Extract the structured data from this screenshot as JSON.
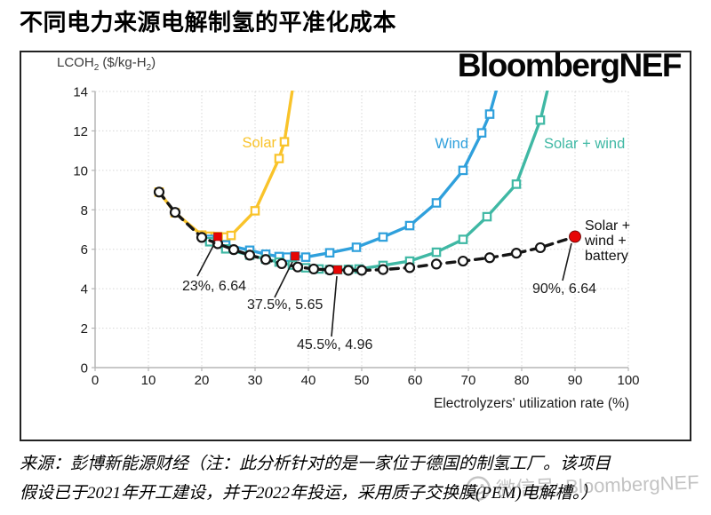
{
  "page": {
    "title": "不同电力来源电解制氢的平准化成本"
  },
  "chart": {
    "brand": "BloombergNEF",
    "y_axis_unit_parts": {
      "pre": "LCOH",
      "sub1": "2",
      "mid": " ($/kg-H",
      "sub2": "2",
      "post": ")"
    }
  },
  "chart_data": {
    "type": "line",
    "title": "不同电力来源电解制氢的平准化成本",
    "xlabel": "Electrolyzers' utilization rate (%)",
    "ylabel": "LCOH2 ($/kg-H2)",
    "xlim": [
      0,
      100
    ],
    "ylim": [
      0,
      14
    ],
    "xticks": [
      0,
      10,
      20,
      30,
      40,
      50,
      60,
      70,
      80,
      90,
      100
    ],
    "yticks": [
      0,
      2,
      4,
      6,
      8,
      10,
      12,
      14
    ],
    "grid": true,
    "colors": {
      "solar": "#F9C32A",
      "wind": "#2FA0DC",
      "solar_wind": "#3FB8A4",
      "battery": "#151515",
      "highlight_red": "#E60505",
      "gridline": "#d6d6d6",
      "axis": "#b5b5b5"
    },
    "series": [
      {
        "name": "Solar",
        "color": "#F9C32A",
        "marker": "square",
        "dash": "solid",
        "points": [
          [
            12,
            8.9
          ],
          [
            15,
            7.85
          ],
          [
            20,
            6.72
          ],
          [
            21.5,
            6.66
          ],
          [
            22.5,
            6.64
          ],
          [
            23,
            6.64
          ],
          [
            24.5,
            6.62
          ],
          [
            25.5,
            6.7
          ],
          [
            30,
            7.95
          ],
          [
            34.5,
            10.6
          ],
          [
            35.5,
            11.45
          ],
          [
            37.3,
            14.6
          ]
        ]
      },
      {
        "name": "Wind",
        "color": "#2FA0DC",
        "marker": "square",
        "dash": "solid",
        "points": [
          [
            21.5,
            6.5
          ],
          [
            24.5,
            6.22
          ],
          [
            29,
            5.95
          ],
          [
            32,
            5.75
          ],
          [
            34.5,
            5.63
          ],
          [
            36,
            5.6
          ],
          [
            37.5,
            5.65
          ],
          [
            39.5,
            5.6
          ],
          [
            44,
            5.82
          ],
          [
            49,
            6.1
          ],
          [
            54,
            6.62
          ],
          [
            59,
            7.2
          ],
          [
            64,
            8.35
          ],
          [
            69,
            10.0
          ],
          [
            72.5,
            11.9
          ],
          [
            74,
            12.85
          ],
          [
            75.8,
            14.6
          ]
        ]
      },
      {
        "name": "Solar + wind",
        "color": "#3FB8A4",
        "marker": "square",
        "dash": "solid",
        "points": [
          [
            21.5,
            6.38
          ],
          [
            24.5,
            6.02
          ],
          [
            29,
            5.7
          ],
          [
            32,
            5.5
          ],
          [
            34.5,
            5.35
          ],
          [
            37,
            5.2
          ],
          [
            39.5,
            5.06
          ],
          [
            42,
            5.0
          ],
          [
            44,
            4.97
          ],
          [
            45.5,
            4.96
          ],
          [
            47.5,
            4.98
          ],
          [
            49.5,
            5.0
          ],
          [
            54,
            5.18
          ],
          [
            59,
            5.4
          ],
          [
            64,
            5.85
          ],
          [
            69,
            6.5
          ],
          [
            73.5,
            7.65
          ],
          [
            79,
            9.3
          ],
          [
            83.5,
            12.55
          ],
          [
            85.3,
            14.6
          ]
        ]
      },
      {
        "name": "Solar + wind + battery",
        "color": "#151515",
        "marker": "circle",
        "dash": "dashed",
        "points": [
          [
            12,
            8.9
          ],
          [
            15,
            7.87
          ],
          [
            20,
            6.6
          ],
          [
            23,
            6.28
          ],
          [
            26,
            5.98
          ],
          [
            29,
            5.7
          ],
          [
            32,
            5.48
          ],
          [
            35,
            5.27
          ],
          [
            38,
            5.1
          ],
          [
            41,
            5.0
          ],
          [
            44,
            4.95
          ],
          [
            47.5,
            4.93
          ],
          [
            50,
            4.93
          ],
          [
            54,
            4.97
          ],
          [
            59,
            5.07
          ],
          [
            64,
            5.25
          ],
          [
            69,
            5.4
          ],
          [
            74,
            5.57
          ],
          [
            79,
            5.8
          ],
          [
            83.5,
            6.08
          ],
          [
            90,
            6.64
          ]
        ]
      }
    ],
    "highlights": [
      {
        "series": "Solar",
        "x": 23,
        "y": 6.64,
        "label": "23%, 6.64",
        "marker": "red-square"
      },
      {
        "series": "Wind",
        "x": 37.5,
        "y": 5.65,
        "label": "37.5%, 5.65",
        "marker": "red-square"
      },
      {
        "series": "Solar + wind",
        "x": 45.5,
        "y": 4.96,
        "label": "45.5%, 4.96",
        "marker": "red-square"
      },
      {
        "series": "Solar + wind + battery",
        "x": 90,
        "y": 6.64,
        "label": "90%, 6.64",
        "marker": "red-circle"
      }
    ],
    "legend_position": "inline-labels"
  },
  "source": {
    "line1": "来源：彭博新能源财经（注：此分析针对的是一家位于德国的制氢工厂。该项目",
    "line2": "假设已于2021年开工建设，并于2022年投运，采用质子交换膜(PEM)电解槽。）"
  },
  "watermark": {
    "text": "微信号: BloombergNEF"
  }
}
